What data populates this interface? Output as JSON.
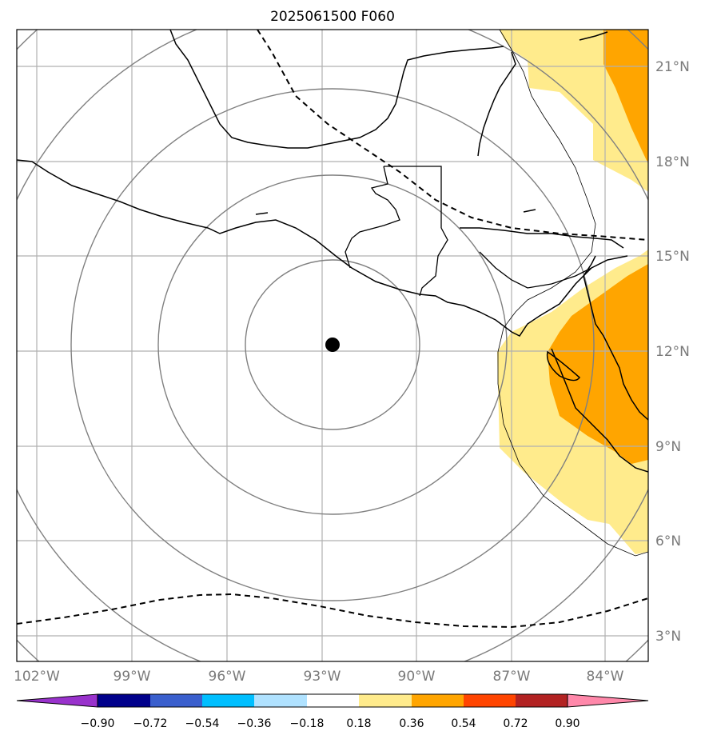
{
  "title": "2025061500 F060",
  "map": {
    "lon_labels": [
      "102°W",
      "99°W",
      "96°W",
      "93°W",
      "90°W",
      "87°W",
      "84°W"
    ],
    "lat_labels": [
      "21°N",
      "18°N",
      "15°N",
      "12°N",
      "9°N",
      "6°N",
      "3°N"
    ],
    "center_marker": {
      "lon": -92.7,
      "lat": 12.2
    },
    "range_ring_count": 5
  },
  "colorbar": {
    "tick_labels": [
      "−0.90",
      "−0.72",
      "−0.54",
      "−0.36",
      "−0.18",
      "0.18",
      "0.36",
      "0.54",
      "0.72",
      "0.90"
    ],
    "colors": [
      "#9932cc",
      "#00008b",
      "#3a5fcd",
      "#00bfff",
      "#b0e2ff",
      "#ffffff",
      "#ffeb8c",
      "#ffa500",
      "#ff4500",
      "#b22222",
      "#ff88aa"
    ]
  }
}
